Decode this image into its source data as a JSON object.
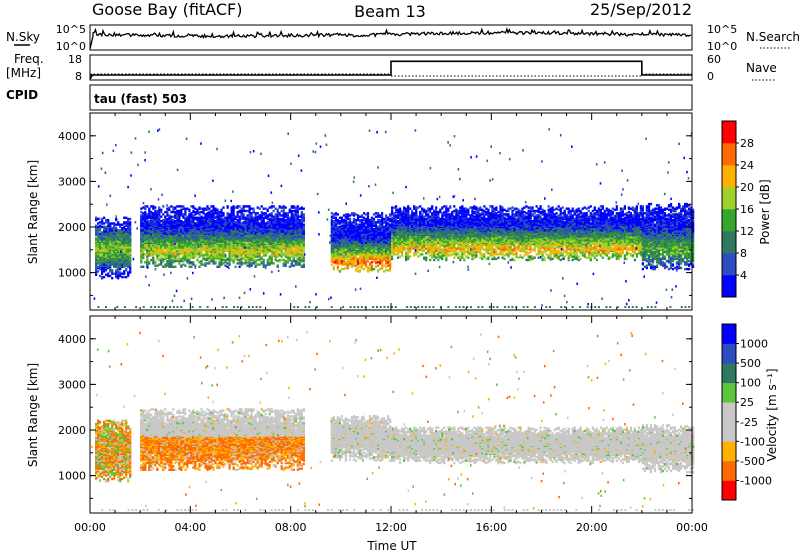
{
  "header": {
    "station": "Goose Bay (fitACF)",
    "beam": "Beam 13",
    "date": "25/Sep/2012"
  },
  "noise_panel": {
    "left_label": "N.Sky",
    "right_label": "N.Search",
    "left_ticks": [
      "10^5",
      "10^0"
    ],
    "right_ticks": [
      "10^5",
      "10^0"
    ]
  },
  "freq_panel": {
    "left_label_1": "Freq.",
    "left_label_2": "[MHz]",
    "right_label": "Nave",
    "left_ticks": [
      "18",
      "8"
    ],
    "right_ticks": [
      "60",
      "0"
    ],
    "freq_steps": [
      {
        "start_h": 0,
        "end_h": 12,
        "value": 10
      },
      {
        "start_h": 12,
        "end_h": 22,
        "value": 15.5
      },
      {
        "start_h": 22,
        "end_h": 24,
        "value": 10
      }
    ]
  },
  "cpid_panel": {
    "label": "CPID",
    "text": "tau (fast) 503"
  },
  "chart_data": [
    {
      "type": "heatmap",
      "name": "power",
      "ylabel": "Slant Range [km]",
      "ylim": [
        180,
        4500
      ],
      "yticks": [
        "1000",
        "2000",
        "3000",
        "4000"
      ],
      "xlim": [
        0,
        24
      ],
      "colorbar": {
        "label": "Power [dB]",
        "ticks": [
          "28",
          "24",
          "20",
          "16",
          "12",
          "8",
          "4"
        ],
        "colors": [
          "#0000ff",
          "#2d4dc2",
          "#2f7a5f",
          "#37a62c",
          "#9fd12d",
          "#ffb000",
          "#ff6a00",
          "#ff0000"
        ]
      },
      "regions": [
        {
          "t0": 0.2,
          "t1": 1.6,
          "r0": 850,
          "r1": 2200,
          "core": 1500,
          "level": 0.55
        },
        {
          "t0": 2.0,
          "t1": 8.5,
          "r0": 1100,
          "r1": 2450,
          "core": 1450,
          "level": 0.62
        },
        {
          "t0": 9.6,
          "t1": 12.0,
          "r0": 1000,
          "r1": 2300,
          "core": 1200,
          "level": 0.85
        },
        {
          "t0": 12.0,
          "t1": 22.0,
          "r0": 1250,
          "r1": 2450,
          "core": 1500,
          "level": 0.72
        },
        {
          "t0": 22.0,
          "t1": 24.0,
          "r0": 1050,
          "r1": 2500,
          "core": 1500,
          "level": 0.45
        }
      ]
    },
    {
      "type": "heatmap",
      "name": "velocity",
      "ylabel": "Slant Range [km]",
      "ylim": [
        180,
        4500
      ],
      "yticks": [
        "1000",
        "2000",
        "3000",
        "4000"
      ],
      "xlim": [
        0,
        24
      ],
      "xticks": [
        "00:00",
        "04:00",
        "08:00",
        "12:00",
        "16:00",
        "20:00",
        "00:00"
      ],
      "xlabel": "Time UT",
      "colorbar": {
        "label": "Velocity [m s⁻¹]",
        "ticks": [
          "1000",
          "500",
          "100",
          "25",
          "-25",
          "-100",
          "-500",
          "-1000"
        ],
        "colors": [
          "#ff0000",
          "#ff6a00",
          "#ffb000",
          "#c8c8c8",
          "#c8c8c8",
          "#5cc43b",
          "#2f7a5f",
          "#2d4dc2",
          "#0000ff"
        ]
      },
      "regions": [
        {
          "t0": 0.2,
          "t1": 1.6,
          "r0": 850,
          "r1": 2200,
          "kind": "mixed"
        },
        {
          "t0": 2.0,
          "t1": 8.5,
          "r0": 1100,
          "r1": 2450,
          "kind": "negative"
        },
        {
          "t0": 9.6,
          "t1": 12.0,
          "r0": 1300,
          "r1": 2300,
          "kind": "grey"
        },
        {
          "t0": 12.0,
          "t1": 22.0,
          "r0": 1250,
          "r1": 2050,
          "kind": "grey"
        },
        {
          "t0": 22.0,
          "t1": 24.0,
          "r0": 1050,
          "r1": 2100,
          "kind": "grey"
        }
      ]
    }
  ]
}
